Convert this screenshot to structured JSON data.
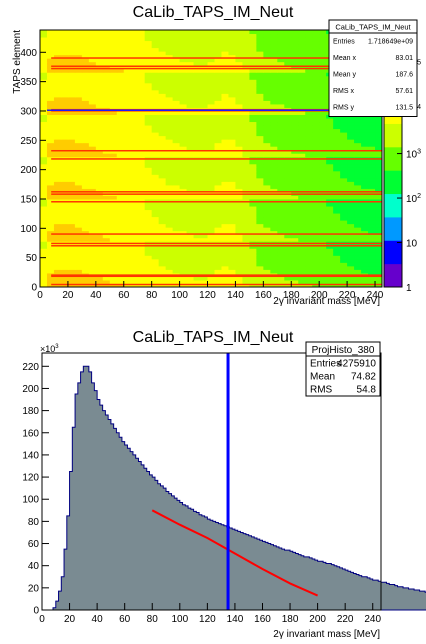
{
  "chart_data": [
    {
      "type": "heatmap",
      "title": "CaLib_TAPS_IM_Neut",
      "xlabel": "2γ invariant mass [MeV]",
      "ylabel": "TAPS element",
      "xlim": [
        0,
        245
      ],
      "ylim": [
        0,
        438
      ],
      "x_ticks": [
        0,
        20,
        40,
        60,
        80,
        100,
        120,
        140,
        160,
        180,
        200,
        220,
        240
      ],
      "y_ticks": [
        0,
        50,
        100,
        150,
        200,
        250,
        300,
        350,
        400
      ],
      "z_scale": "log",
      "z_ticks": [
        {
          "base": "1",
          "exp": ""
        },
        {
          "base": "10",
          "exp": ""
        },
        {
          "base": "10",
          "exp": "2"
        },
        {
          "base": "10",
          "exp": "3"
        },
        {
          "base": "10",
          "exp": "4"
        },
        {
          "base": "10",
          "exp": "5"
        }
      ],
      "z_tick_values": [
        1,
        10,
        100,
        1000,
        10000,
        100000
      ],
      "z_max": 600000,
      "palette": [
        "#6600cc",
        "#0000ff",
        "#0099ff",
        "#00ffcc",
        "#00ff33",
        "#66ff00",
        "#ccff00",
        "#ffff00",
        "#ffcc00",
        "#ff6600",
        "#ff0000"
      ],
      "ring_boundaries": [
        73,
        146,
        219,
        292,
        365,
        438
      ],
      "hot_rows": [
        4,
        18,
        20,
        70,
        74,
        90,
        145,
        158,
        162,
        218,
        232,
        300,
        302,
        372,
        376,
        390
      ],
      "dead_rows": [
        301
      ],
      "stats_box": {
        "title": "CaLib_TAPS_IM_Neut",
        "rows": [
          {
            "label": "Entries",
            "value": "1.718649e+09"
          },
          {
            "label": "Mean x",
            "value": "83.01"
          },
          {
            "label": "Mean y",
            "value": "187.6"
          },
          {
            "label": "RMS x",
            "value": "57.61"
          },
          {
            "label": "RMS y",
            "value": "131.5"
          }
        ]
      }
    },
    {
      "type": "bar",
      "title": "CaLib_TAPS_IM_Neut",
      "xlabel": "2γ invariant mass [MeV]",
      "y_multiplier": {
        "base": "×10",
        "exp": "3"
      },
      "xlim": [
        0,
        246
      ],
      "ylim": [
        0,
        232
      ],
      "x_ticks": [
        0,
        20,
        40,
        60,
        80,
        100,
        120,
        140,
        160,
        180,
        200,
        220,
        240
      ],
      "y_ticks": [
        0,
        20,
        40,
        60,
        80,
        100,
        120,
        140,
        160,
        180,
        200,
        220
      ],
      "bin_width": 2,
      "bins_start": 0,
      "values": [
        0,
        0,
        0,
        0,
        2,
        8,
        17,
        30,
        55,
        85,
        125,
        165,
        195,
        205,
        215,
        220,
        220,
        215,
        205,
        198,
        190,
        185,
        180,
        176,
        172,
        168,
        164,
        160,
        156,
        152,
        149,
        146,
        143,
        140,
        137,
        134,
        131,
        128,
        125,
        122,
        120,
        117,
        114,
        112,
        110,
        107,
        105,
        103,
        101,
        99,
        97,
        95,
        94,
        92,
        91,
        89,
        88,
        86,
        85,
        84,
        82,
        81,
        80,
        79,
        78,
        77,
        76,
        75,
        74,
        73,
        72,
        71,
        70,
        69,
        68,
        67,
        66,
        65,
        64,
        63,
        62,
        61,
        60,
        59,
        58,
        57,
        56,
        55,
        54,
        54,
        53,
        52,
        51,
        50,
        49,
        48,
        48,
        47,
        46,
        45,
        44,
        44,
        43,
        42,
        42,
        41,
        40,
        39,
        38,
        37,
        36,
        35,
        34,
        33,
        32,
        31,
        30,
        30,
        29,
        28,
        27,
        27,
        26,
        25,
        25,
        24,
        23,
        23,
        22,
        21,
        21,
        20,
        20,
        19,
        19,
        18,
        18,
        17,
        17,
        16,
        16,
        15,
        15,
        15,
        14,
        14,
        14,
        13,
        13,
        13,
        12,
        12
      ],
      "fit_line": {
        "x": [
          80,
          100,
          120,
          130,
          140,
          160,
          180,
          200
        ],
        "y": [
          90,
          77,
          65,
          58,
          51,
          37,
          24,
          13
        ]
      },
      "marker_line_x": 135,
      "stats_box": {
        "title": "ProjHisto_380",
        "rows": [
          {
            "label": "Entries",
            "value": "4275910"
          },
          {
            "label": "Mean",
            "value": "74.82"
          },
          {
            "label": "RMS",
            "value": "54.8"
          }
        ]
      }
    }
  ]
}
